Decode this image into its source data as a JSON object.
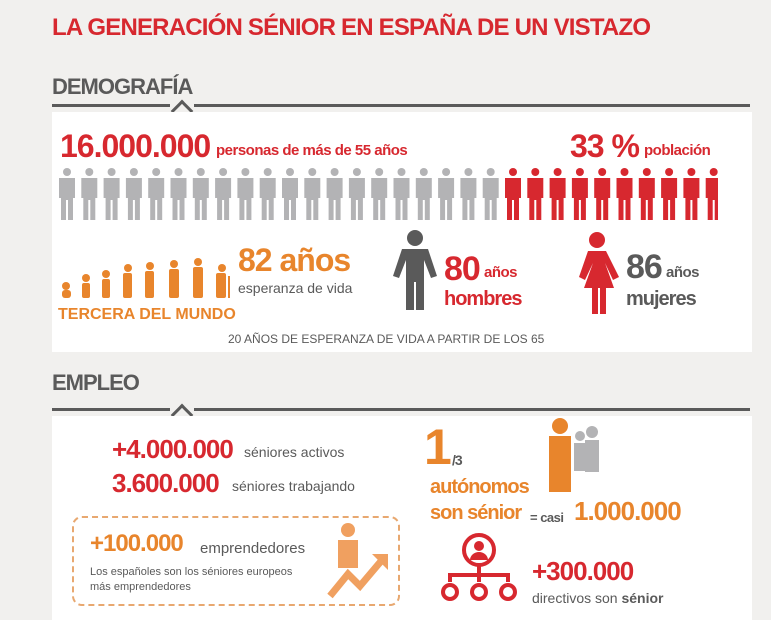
{
  "title": "LA GENERACIÓN SÉNIOR EN ESPAÑA DE UN VISTAZO",
  "colors": {
    "red": "#d7282f",
    "gray": "#5a5a5a",
    "orange": "#e8852c",
    "light_gray": "#b3b3b5"
  },
  "demografia": {
    "heading": "DEMOGRAFÍA",
    "total_value": "16.000.000",
    "total_label": "personas de más de 55 años",
    "percent_value": "33 %",
    "percent_label": "población",
    "pictogram": {
      "total": 30,
      "highlighted": 10,
      "icon": "person-icon"
    },
    "life_expectancy_value": "82 años",
    "life_expectancy_label": "esperanza de vida",
    "world_rank": "TERCERA DEL MUNDO",
    "men_value": "80",
    "men_unit": "años",
    "men_label": "hombres",
    "women_value": "86",
    "women_unit": "años",
    "women_label": "mujeres",
    "footnote": "20 AÑOS DE ESPERANZA DE VIDA A PARTIR DE LOS 65"
  },
  "empleo": {
    "heading": "EMPLEO",
    "active_value": "+4.000.000",
    "active_label": "séniores activos",
    "working_value": "3.600.000",
    "working_label": "séniores trabajando",
    "fraction_num": "1",
    "fraction_den": "/3",
    "self_employed_label_1": "autónomos",
    "self_employed_label_2": "son sénior",
    "almost_label": "= casi",
    "almost_value": "1.000.000",
    "entrepreneurs_value": "+100.000",
    "entrepreneurs_label": "emprendedores",
    "entrepreneurs_note_1": "Los españoles son los séniores europeos",
    "entrepreneurs_note_2": "más emprendedores",
    "executives_value": "+300.000",
    "executives_label": "directivos son",
    "executives_bold": "sénior"
  }
}
